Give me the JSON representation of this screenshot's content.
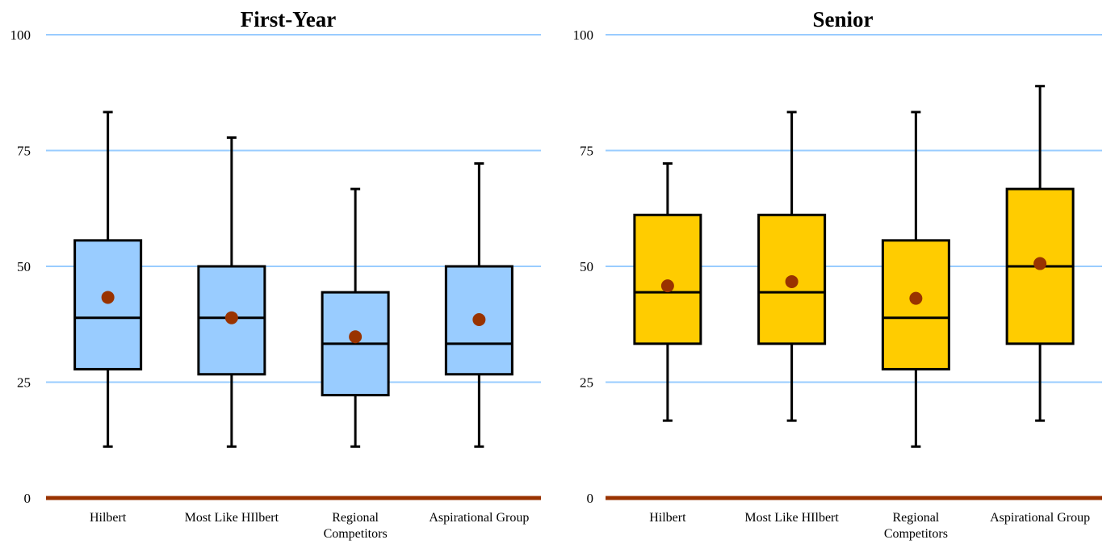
{
  "chart_data": [
    {
      "type": "box",
      "title": "First-Year",
      "categories": [
        "Hilbert",
        "Most Like HIlbert",
        "Regional Competitors",
        "Aspirational Group"
      ],
      "category_lines": [
        [
          "Hilbert"
        ],
        [
          "Most Like HIlbert"
        ],
        [
          "Regional",
          "Competitors"
        ],
        [
          "Aspirational Group"
        ]
      ],
      "ylim": [
        0,
        100
      ],
      "yticks": [
        0,
        25,
        50,
        75,
        100
      ],
      "grid": true,
      "box_color": "#99CCFF",
      "mean_color": "#993300",
      "boxes": [
        {
          "min": 11.1,
          "q1": 27.8,
          "median": 38.9,
          "q3": 55.6,
          "max": 83.3,
          "mean": 43.3
        },
        {
          "min": 11.1,
          "q1": 26.7,
          "median": 38.9,
          "q3": 50.0,
          "max": 77.8,
          "mean": 38.9
        },
        {
          "min": 11.1,
          "q1": 22.2,
          "median": 33.3,
          "q3": 44.4,
          "max": 66.7,
          "mean": 34.8
        },
        {
          "min": 11.1,
          "q1": 26.7,
          "median": 33.3,
          "q3": 50.0,
          "max": 72.2,
          "mean": 38.5
        }
      ]
    },
    {
      "type": "box",
      "title": "Senior",
      "categories": [
        "Hilbert",
        "Most Like HIlbert",
        "Regional Competitors",
        "Aspirational Group"
      ],
      "category_lines": [
        [
          "Hilbert"
        ],
        [
          "Most Like HIlbert"
        ],
        [
          "Regional",
          "Competitors"
        ],
        [
          "Aspirational Group"
        ]
      ],
      "ylim": [
        0,
        100
      ],
      "yticks": [
        0,
        25,
        50,
        75,
        100
      ],
      "grid": true,
      "box_color": "#FFCC00",
      "mean_color": "#993300",
      "boxes": [
        {
          "min": 16.7,
          "q1": 33.3,
          "median": 44.4,
          "q3": 61.1,
          "max": 72.2,
          "mean": 45.8
        },
        {
          "min": 16.7,
          "q1": 33.3,
          "median": 44.4,
          "q3": 61.1,
          "max": 83.3,
          "mean": 46.7
        },
        {
          "min": 11.1,
          "q1": 27.8,
          "median": 38.9,
          "q3": 55.6,
          "max": 83.3,
          "mean": 43.1
        },
        {
          "min": 16.7,
          "q1": 33.3,
          "median": 50.0,
          "q3": 66.7,
          "max": 88.9,
          "mean": 50.6
        }
      ]
    }
  ],
  "colors": {
    "gridline": "#99CCFF",
    "baseline": "#993300",
    "stroke": "#000000"
  }
}
